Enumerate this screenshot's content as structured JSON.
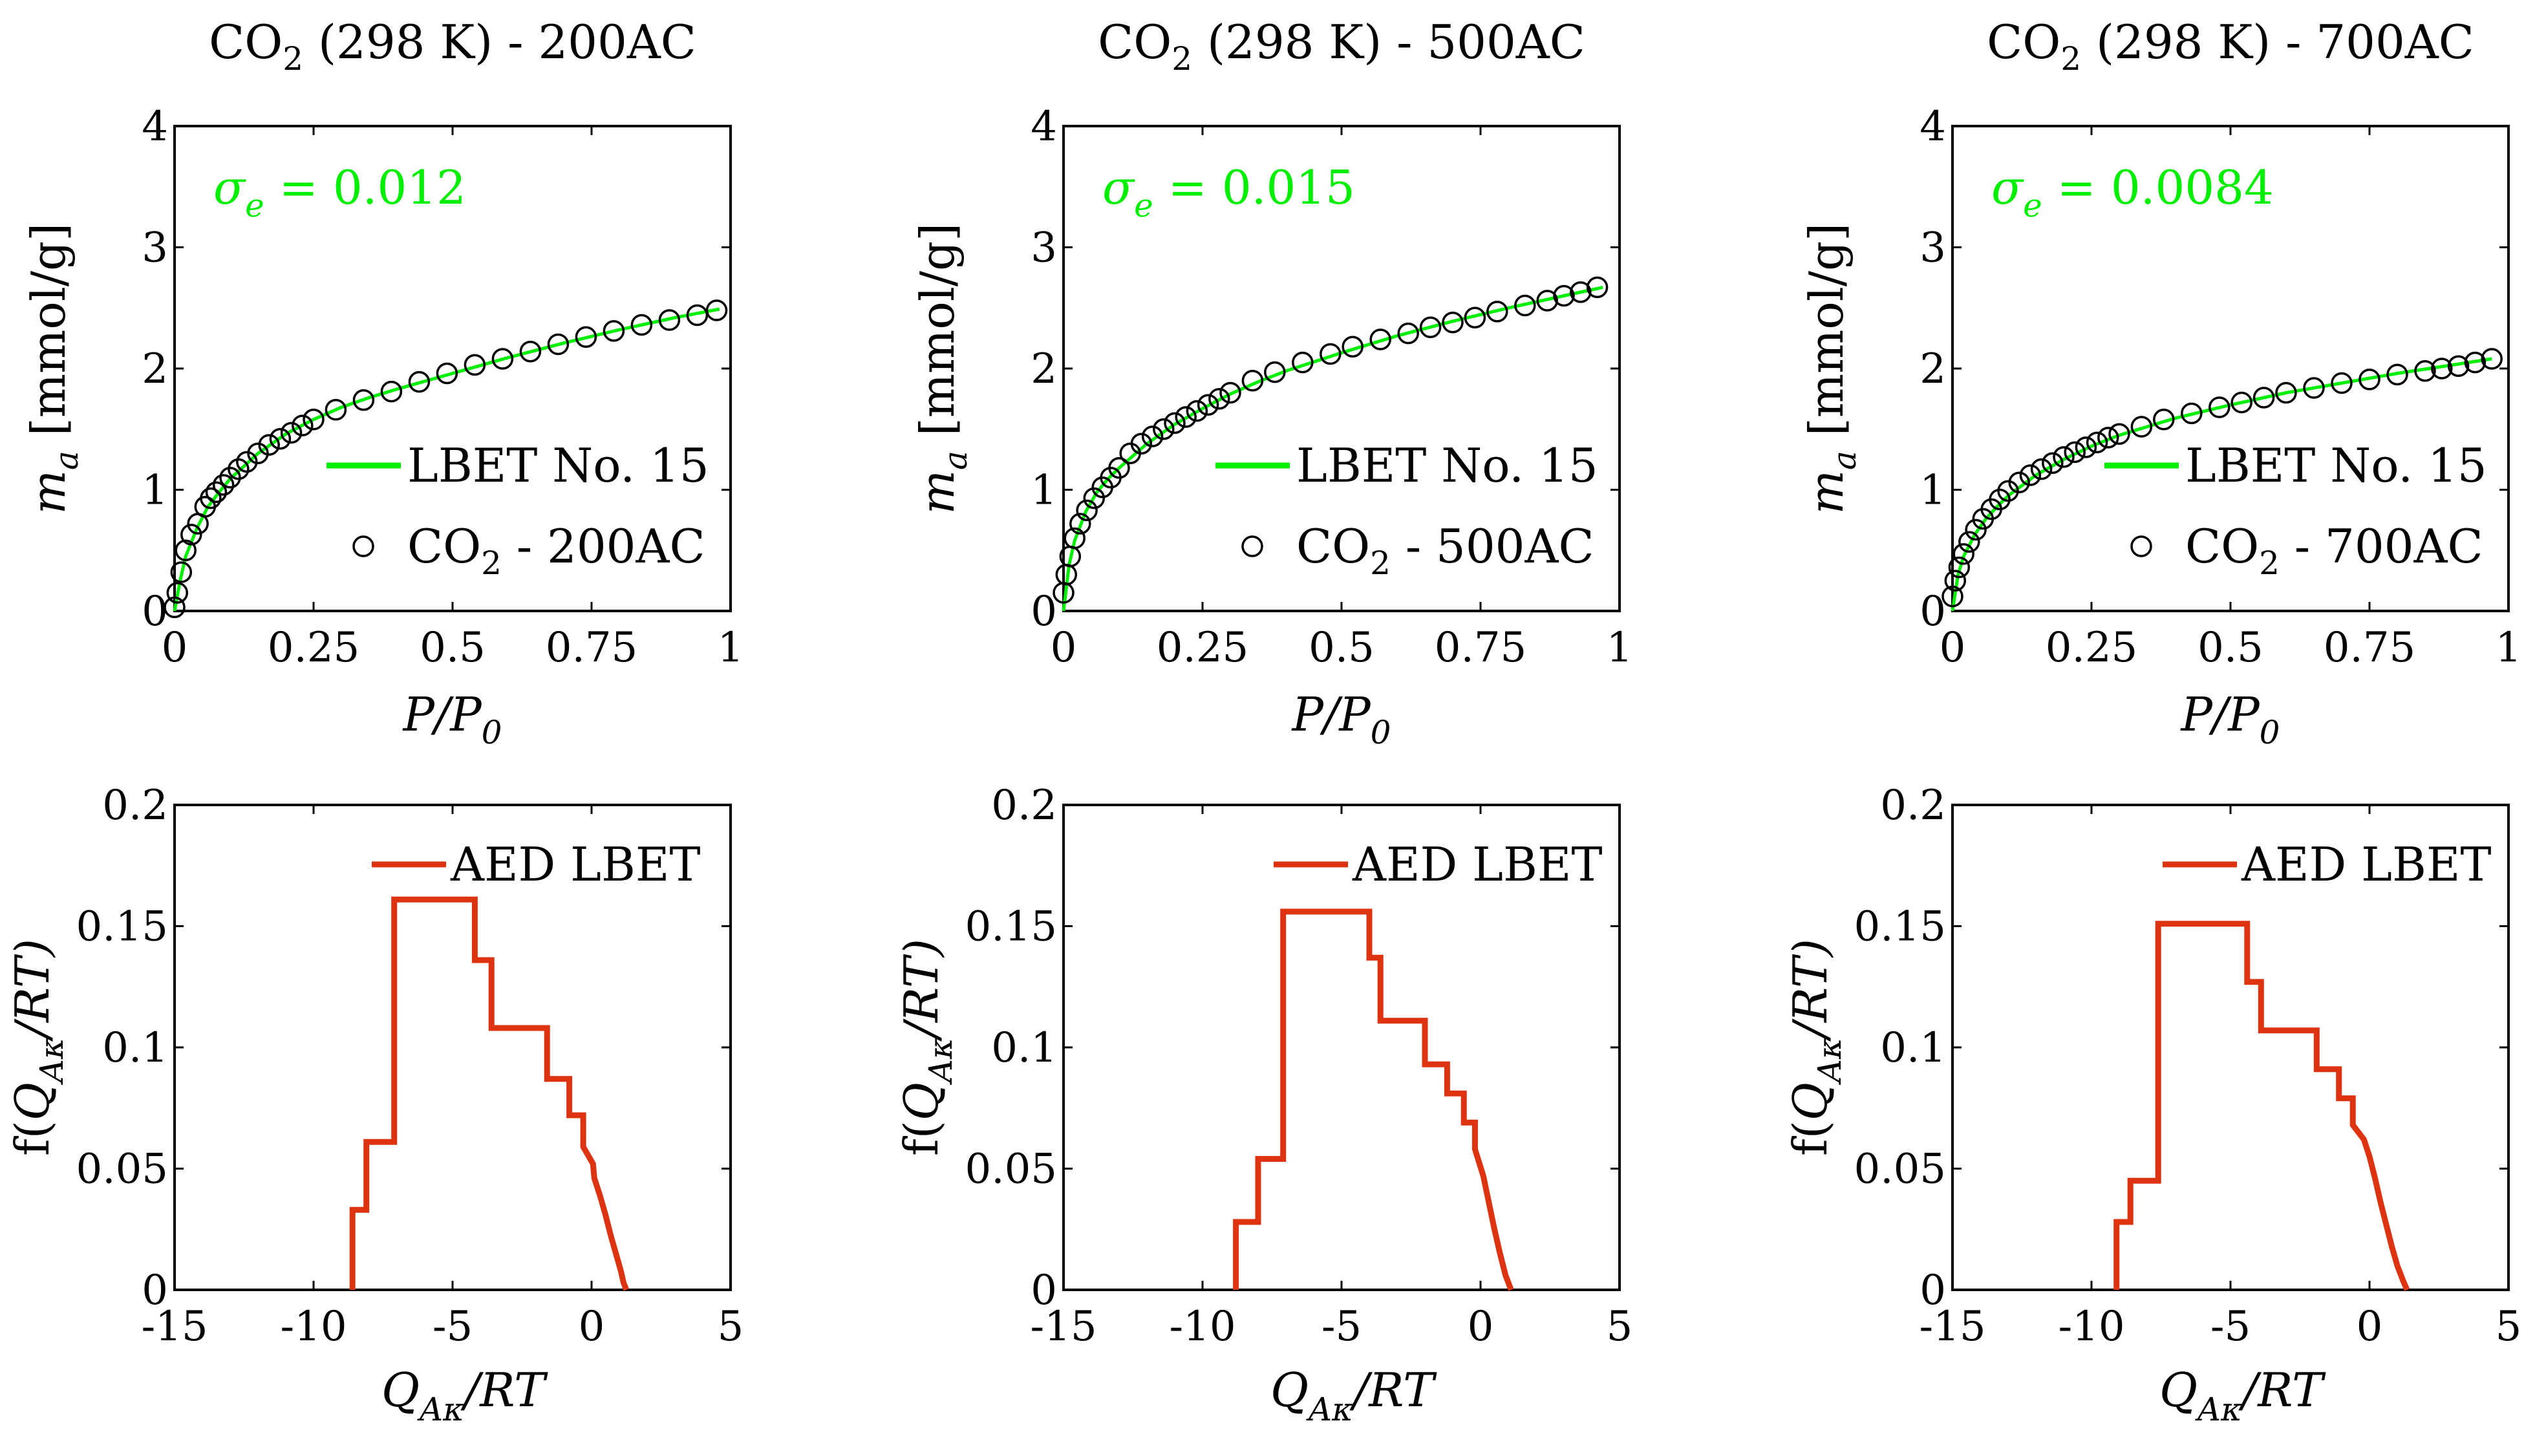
{
  "isotherm_panels": [
    {
      "title_main": "CO",
      "title_sub": "2",
      "title_rest": " (298 K) - 200AC",
      "sigma_symbol": "σ",
      "sigma_sub": "e",
      "sigma_value": " = 0.012",
      "ylabel_main": "m",
      "ylabel_sub": "a",
      "ylabel_rest": " [mmol/g]",
      "xlabel_main": "P/P",
      "xlabel_sub": "0",
      "legend_line": "LBET No. 15",
      "legend_marker_main": "CO",
      "legend_marker_sub": "2",
      "legend_marker_rest": " - 200AC",
      "xticks": [
        "0",
        "0.25",
        "0.5",
        "0.75",
        "1"
      ],
      "yticks": [
        "0",
        "1",
        "2",
        "3",
        "4"
      ]
    },
    {
      "title_main": "CO",
      "title_sub": "2",
      "title_rest": " (298 K) - 500AC",
      "sigma_symbol": "σ",
      "sigma_sub": "e",
      "sigma_value": " = 0.015",
      "ylabel_main": "m",
      "ylabel_sub": "a",
      "ylabel_rest": " [mmol/g]",
      "xlabel_main": "P/P",
      "xlabel_sub": "0",
      "legend_line": "LBET No. 15",
      "legend_marker_main": "CO",
      "legend_marker_sub": "2",
      "legend_marker_rest": " - 500AC",
      "xticks": [
        "0",
        "0.25",
        "0.5",
        "0.75",
        "1"
      ],
      "yticks": [
        "0",
        "1",
        "2",
        "3",
        "4"
      ]
    },
    {
      "title_main": "CO",
      "title_sub": "2",
      "title_rest": " (298 K) - 700AC",
      "sigma_symbol": "σ",
      "sigma_sub": "e",
      "sigma_value": " = 0.0084",
      "ylabel_main": "m",
      "ylabel_sub": "a",
      "ylabel_rest": " [mmol/g]",
      "xlabel_main": "P/P",
      "xlabel_sub": "0",
      "legend_line": "LBET No. 15",
      "legend_marker_main": "CO",
      "legend_marker_sub": "2",
      "legend_marker_rest": " - 700AC",
      "xticks": [
        "0",
        "0.25",
        "0.5",
        "0.75",
        "1"
      ],
      "yticks": [
        "0",
        "1",
        "2",
        "3",
        "4"
      ]
    }
  ],
  "aed_panels": [
    {
      "ylabel_pre": "f(",
      "ylabel_main": "Q",
      "ylabel_sub": "Aκ",
      "ylabel_rest": "/RT)",
      "xlabel_main": "Q",
      "xlabel_sub": "Aκ",
      "xlabel_rest": "/RT",
      "legend_line": "AED LBET",
      "xticks": [
        "-15",
        "-10",
        "-5",
        "0",
        "5"
      ],
      "yticks": [
        "0",
        "0.05",
        "0.1",
        "0.15",
        "0.2"
      ]
    },
    {
      "ylabel_pre": "f(",
      "ylabel_main": "Q",
      "ylabel_sub": "Aκ",
      "ylabel_rest": "/RT)",
      "xlabel_main": "Q",
      "xlabel_sub": "Aκ",
      "xlabel_rest": "/RT",
      "legend_line": "AED LBET",
      "xticks": [
        "-15",
        "-10",
        "-5",
        "0",
        "5"
      ],
      "yticks": [
        "0",
        "0.05",
        "0.1",
        "0.15",
        "0.2"
      ]
    },
    {
      "ylabel_pre": "f(",
      "ylabel_main": "Q",
      "ylabel_sub": "Aκ",
      "ylabel_rest": "/RT)",
      "xlabel_main": "Q",
      "xlabel_sub": "Aκ",
      "xlabel_rest": "/RT",
      "legend_line": "AED LBET",
      "xticks": [
        "-15",
        "-10",
        "-5",
        "0",
        "5"
      ],
      "yticks": [
        "0",
        "0.05",
        "0.1",
        "0.15",
        "0.2"
      ]
    }
  ],
  "colors": {
    "fit": "#00ee00",
    "aed": "#dd3311",
    "marker": "#000000",
    "axes": "#000000"
  },
  "chart_data": [
    {
      "type": "scatter",
      "title": "CO2 (298 K) - 200AC",
      "xlabel": "P/P0",
      "ylabel": "m_a [mmol/g]",
      "xlim": [
        0,
        1
      ],
      "ylim": [
        0,
        4
      ],
      "legend_position": "lower-right",
      "series": [
        {
          "name": "CO2 - 200AC",
          "marker": "circle",
          "x": [
            0.0,
            0.005,
            0.012,
            0.02,
            0.03,
            0.042,
            0.055,
            0.065,
            0.075,
            0.088,
            0.1,
            0.115,
            0.13,
            0.15,
            0.17,
            0.19,
            0.21,
            0.23,
            0.25,
            0.29,
            0.34,
            0.39,
            0.44,
            0.49,
            0.54,
            0.59,
            0.64,
            0.69,
            0.74,
            0.79,
            0.84,
            0.89,
            0.94,
            0.975
          ],
          "y": [
            0.03,
            0.15,
            0.32,
            0.5,
            0.63,
            0.72,
            0.86,
            0.93,
            0.98,
            1.04,
            1.1,
            1.17,
            1.23,
            1.3,
            1.37,
            1.42,
            1.47,
            1.53,
            1.58,
            1.66,
            1.74,
            1.81,
            1.89,
            1.96,
            2.03,
            2.08,
            2.14,
            2.2,
            2.26,
            2.31,
            2.36,
            2.4,
            2.44,
            2.48
          ]
        },
        {
          "name": "LBET No. 15",
          "line": true,
          "x": [
            0.0,
            0.01,
            0.02,
            0.04,
            0.06,
            0.08,
            0.1,
            0.15,
            0.2,
            0.25,
            0.3,
            0.35,
            0.4,
            0.5,
            0.6,
            0.7,
            0.8,
            0.9,
            0.98
          ],
          "y": [
            0.0,
            0.25,
            0.45,
            0.68,
            0.86,
            0.98,
            1.09,
            1.3,
            1.46,
            1.58,
            1.68,
            1.76,
            1.83,
            1.96,
            2.09,
            2.21,
            2.32,
            2.42,
            2.49
          ]
        }
      ],
      "annotation": "σe = 0.012"
    },
    {
      "type": "scatter",
      "title": "CO2 (298 K) - 500AC",
      "xlabel": "P/P0",
      "ylabel": "m_a [mmol/g]",
      "xlim": [
        0,
        1
      ],
      "ylim": [
        0,
        4
      ],
      "legend_position": "lower-right",
      "series": [
        {
          "name": "CO2 - 500AC",
          "marker": "circle",
          "x": [
            0.0,
            0.005,
            0.012,
            0.02,
            0.03,
            0.042,
            0.055,
            0.07,
            0.085,
            0.1,
            0.12,
            0.14,
            0.16,
            0.18,
            0.2,
            0.22,
            0.24,
            0.26,
            0.28,
            0.3,
            0.34,
            0.38,
            0.43,
            0.48,
            0.52,
            0.57,
            0.62,
            0.66,
            0.7,
            0.74,
            0.78,
            0.83,
            0.87,
            0.9,
            0.93,
            0.96
          ],
          "y": [
            0.15,
            0.3,
            0.45,
            0.6,
            0.72,
            0.83,
            0.93,
            1.02,
            1.1,
            1.18,
            1.3,
            1.38,
            1.44,
            1.5,
            1.55,
            1.6,
            1.65,
            1.7,
            1.75,
            1.8,
            1.9,
            1.97,
            2.05,
            2.12,
            2.18,
            2.24,
            2.29,
            2.34,
            2.38,
            2.42,
            2.47,
            2.52,
            2.56,
            2.6,
            2.63,
            2.67
          ]
        },
        {
          "name": "LBET No. 15",
          "line": true,
          "x": [
            0.0,
            0.01,
            0.02,
            0.04,
            0.06,
            0.08,
            0.1,
            0.15,
            0.2,
            0.25,
            0.3,
            0.35,
            0.4,
            0.5,
            0.6,
            0.7,
            0.8,
            0.9,
            0.97
          ],
          "y": [
            0.0,
            0.38,
            0.58,
            0.82,
            0.98,
            1.09,
            1.18,
            1.38,
            1.54,
            1.67,
            1.79,
            1.89,
            1.98,
            2.13,
            2.27,
            2.39,
            2.5,
            2.6,
            2.67
          ]
        }
      ],
      "annotation": "σe = 0.015"
    },
    {
      "type": "scatter",
      "title": "CO2 (298 K) - 700AC",
      "xlabel": "P/P0",
      "ylabel": "m_a [mmol/g]",
      "xlim": [
        0,
        1
      ],
      "ylim": [
        0,
        4
      ],
      "legend_position": "lower-right",
      "series": [
        {
          "name": "CO2 - 700AC",
          "marker": "circle",
          "x": [
            0.0,
            0.005,
            0.012,
            0.02,
            0.03,
            0.042,
            0.055,
            0.07,
            0.085,
            0.1,
            0.12,
            0.14,
            0.16,
            0.18,
            0.2,
            0.22,
            0.24,
            0.26,
            0.28,
            0.3,
            0.34,
            0.38,
            0.43,
            0.48,
            0.52,
            0.56,
            0.6,
            0.65,
            0.7,
            0.75,
            0.8,
            0.85,
            0.88,
            0.91,
            0.94,
            0.97
          ],
          "y": [
            0.12,
            0.25,
            0.36,
            0.47,
            0.57,
            0.67,
            0.76,
            0.84,
            0.92,
            0.99,
            1.06,
            1.12,
            1.17,
            1.22,
            1.27,
            1.31,
            1.35,
            1.39,
            1.43,
            1.46,
            1.52,
            1.58,
            1.63,
            1.68,
            1.72,
            1.76,
            1.8,
            1.84,
            1.88,
            1.91,
            1.95,
            1.98,
            2.0,
            2.02,
            2.05,
            2.08
          ]
        },
        {
          "name": "LBET No. 15",
          "line": true,
          "x": [
            0.0,
            0.01,
            0.02,
            0.04,
            0.06,
            0.08,
            0.1,
            0.15,
            0.2,
            0.25,
            0.3,
            0.35,
            0.4,
            0.5,
            0.6,
            0.7,
            0.8,
            0.9,
            0.97
          ],
          "y": [
            0.0,
            0.3,
            0.45,
            0.63,
            0.76,
            0.86,
            0.95,
            1.12,
            1.25,
            1.36,
            1.45,
            1.52,
            1.59,
            1.7,
            1.8,
            1.88,
            1.96,
            2.03,
            2.08
          ]
        }
      ],
      "annotation": "σe = 0.0084"
    },
    {
      "type": "line",
      "xlabel": "QAκ/RT",
      "ylabel": "f(QAκ/RT)",
      "xlim": [
        -15,
        5
      ],
      "ylim": [
        0,
        0.2
      ],
      "legend_position": "top-right",
      "series": [
        {
          "name": "AED LBET",
          "step": true,
          "x": [
            -8.6,
            -8.6,
            -8.1,
            -8.1,
            -7.1,
            -7.1,
            -4.2,
            -4.2,
            -3.6,
            -3.6,
            -1.6,
            -1.6,
            -0.8,
            -0.8,
            -0.3,
            -0.3,
            0.05,
            0.1,
            0.3,
            0.5,
            0.7,
            0.9,
            1.05,
            1.15,
            1.25
          ],
          "y": [
            0.0,
            0.033,
            0.033,
            0.061,
            0.061,
            0.161,
            0.161,
            0.136,
            0.136,
            0.108,
            0.108,
            0.087,
            0.087,
            0.072,
            0.072,
            0.059,
            0.052,
            0.046,
            0.039,
            0.031,
            0.022,
            0.014,
            0.008,
            0.003,
            0.0
          ]
        }
      ]
    },
    {
      "type": "line",
      "xlabel": "QAκ/RT",
      "ylabel": "f(QAκ/RT)",
      "xlim": [
        -15,
        5
      ],
      "ylim": [
        0,
        0.2
      ],
      "legend_position": "top-right",
      "series": [
        {
          "name": "AED LBET",
          "step": true,
          "x": [
            -8.8,
            -8.8,
            -8.0,
            -8.0,
            -7.1,
            -7.1,
            -4.0,
            -4.0,
            -3.6,
            -3.6,
            -2.0,
            -2.0,
            -1.2,
            -1.2,
            -0.6,
            -0.6,
            -0.2,
            -0.2,
            0.1,
            0.3,
            0.5,
            0.7,
            0.9,
            1.1
          ],
          "y": [
            0.0,
            0.028,
            0.028,
            0.054,
            0.054,
            0.156,
            0.156,
            0.137,
            0.137,
            0.111,
            0.111,
            0.093,
            0.093,
            0.081,
            0.081,
            0.069,
            0.069,
            0.058,
            0.047,
            0.036,
            0.025,
            0.015,
            0.006,
            0.0
          ]
        }
      ]
    },
    {
      "type": "line",
      "xlabel": "QAκ/RT",
      "ylabel": "f(QAκ/RT)",
      "xlim": [
        -15,
        5
      ],
      "ylim": [
        0,
        0.2
      ],
      "legend_position": "top-right",
      "series": [
        {
          "name": "AED LBET",
          "step": true,
          "x": [
            -9.1,
            -9.1,
            -8.6,
            -8.6,
            -7.6,
            -7.6,
            -4.4,
            -4.4,
            -3.9,
            -3.9,
            -1.9,
            -1.9,
            -1.1,
            -1.1,
            -0.6,
            -0.6,
            -0.2,
            0.0,
            0.2,
            0.4,
            0.6,
            0.8,
            1.0,
            1.2,
            1.35
          ],
          "y": [
            0.0,
            0.028,
            0.028,
            0.045,
            0.045,
            0.151,
            0.151,
            0.127,
            0.127,
            0.107,
            0.107,
            0.091,
            0.091,
            0.079,
            0.079,
            0.068,
            0.062,
            0.055,
            0.046,
            0.036,
            0.027,
            0.018,
            0.01,
            0.004,
            0.0
          ]
        }
      ]
    }
  ]
}
